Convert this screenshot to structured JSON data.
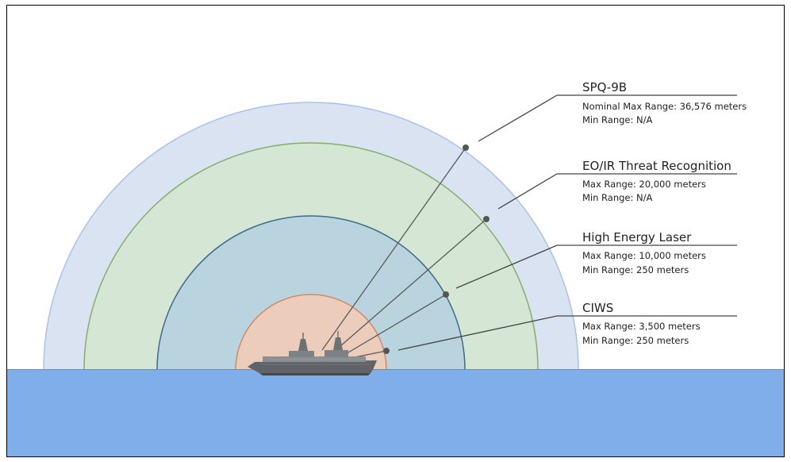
{
  "colors": {
    "ring_outer": "#d9e3f2",
    "ring_outer_stroke": "#a9c3e6",
    "ring_second": "#d5e6d4",
    "ring_second_stroke": "#86ad6d",
    "ring_third": "#b9d4de",
    "ring_third_stroke": "#3d6b8c",
    "ring_inner": "#ecccbb",
    "ring_inner_stroke": "#d08a6a",
    "sea": "#7faeeb",
    "sea_edge": "#5a8fd6",
    "leader_line": "#5a5a5a",
    "dot": "#555555",
    "ship_hull": "#5f6366",
    "ship_superstructure": "#8a8f93"
  },
  "systems": [
    {
      "title": "SPQ-9B",
      "lines": [
        "Nominal Max Range: 36,576 meters",
        "Min Range: N/A"
      ]
    },
    {
      "title": "EO/IR Threat Recognition",
      "lines": [
        "Max Range: 20,000 meters",
        "Min Range: N/A"
      ]
    },
    {
      "title": "High Energy Laser",
      "lines": [
        "Max Range: 10,000 meters",
        "Min Range: 250 meters"
      ]
    },
    {
      "title": "CIWS",
      "lines": [
        "Max Range: 3,500 meters",
        "Min Range: 250 meters"
      ]
    }
  ]
}
